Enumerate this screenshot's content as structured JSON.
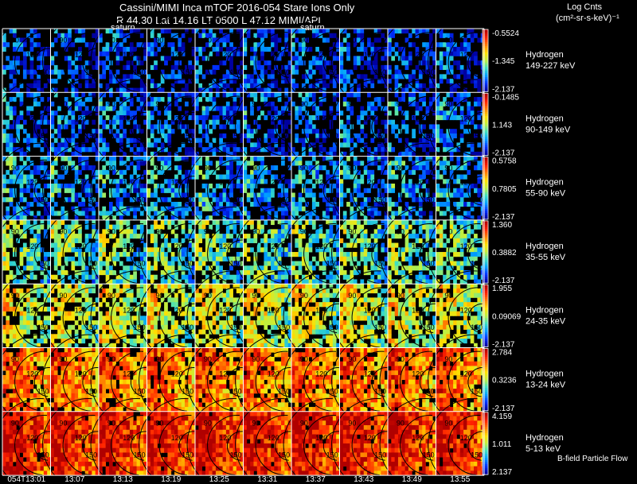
{
  "header": {
    "title_line1": "Cassini/MIMI Inca mTOF  2016-054   Stare   Ions Only",
    "title_line2": "R         44.30 Lat 14.16 LT 0500 L          47.12  MIMI/APL",
    "units_line1": "Log Cnts",
    "units_line2": "(cm²-sr-s-keV)⁻¹",
    "saturn_markers": [
      "saturn",
      "saturn"
    ],
    "footnote": "B-field Particle Flow"
  },
  "colors": {
    "background": "#000000",
    "grid": "#ffffff",
    "colormap": [
      "#0000a0",
      "#0030ff",
      "#00a0ff",
      "#40e0c0",
      "#c0f040",
      "#ffe000",
      "#ff8000",
      "#ff2000",
      "#b00000"
    ]
  },
  "chart_data": {
    "type": "heatmap",
    "x_tick_labels": [
      "054T13:01",
      "13:07",
      "13:13",
      "13:19",
      "13:25",
      "13:31",
      "13:37",
      "13:43",
      "13:49",
      "13:55"
    ],
    "contour_labels": [
      "90",
      "120",
      "150"
    ],
    "rows": [
      {
        "species": "Hydrogen",
        "energy": "149-227 keV",
        "colorbar": [
          "-0.5524",
          "-1.345",
          "-2.137"
        ],
        "level": 0.08
      },
      {
        "species": "Hydrogen",
        "energy": "90-149 keV",
        "colorbar": [
          "-0.1485",
          "1.143",
          "-2.137"
        ],
        "level": 0.12
      },
      {
        "species": "Hydrogen",
        "energy": "55-90 keV",
        "colorbar": [
          "0.5758",
          "0.7805",
          "-2.137"
        ],
        "level": 0.2
      },
      {
        "species": "Hydrogen",
        "energy": "35-55 keV",
        "colorbar": [
          "1.360",
          "0.3882",
          "-2.137"
        ],
        "level": 0.36
      },
      {
        "species": "Hydrogen",
        "energy": "24-35 keV",
        "colorbar": [
          "1.955",
          "0.09069",
          "-2.137"
        ],
        "level": 0.5
      },
      {
        "species": "Hydrogen",
        "energy": "13-24 keV",
        "colorbar": [
          "2.784",
          "0.3236",
          "-2.137"
        ],
        "level": 0.72
      },
      {
        "species": "Hydrogen",
        "energy": "5-13 keV",
        "colorbar": [
          "4.159",
          "1.011",
          "2.137"
        ],
        "level": 0.86
      }
    ]
  }
}
